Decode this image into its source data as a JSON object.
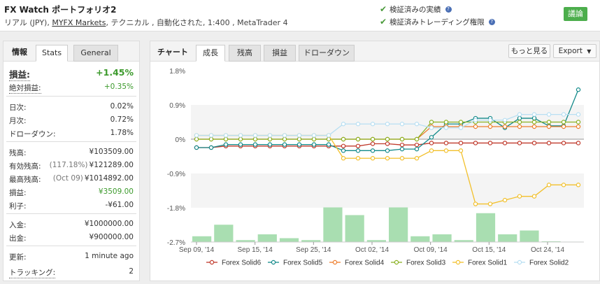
{
  "header": {
    "title": "FX Watch ポートフォリオ2",
    "subtitle_prefix": "リアル (JPY), ",
    "subtitle_link": "MYFX Markets",
    "subtitle_suffix": ", テクニカル , 自動化された, 1:400 , MetaTrader 4",
    "checks": [
      "検証済みの実績",
      "検証済みトレーディング権限"
    ],
    "discuss_button": "議論"
  },
  "left_panel": {
    "header_label": "情報",
    "tabs": [
      "Stats",
      "General"
    ],
    "gain": {
      "label": "損益:",
      "value": "+1.45%"
    },
    "abs_gain": {
      "label": "絶対損益:",
      "value": "+0.35%"
    },
    "group1": [
      {
        "label": "日次:",
        "value": "0.02%"
      },
      {
        "label": "月次:",
        "value": "0.72%"
      },
      {
        "label": "ドローダウン:",
        "value": "1.78%"
      }
    ],
    "group2": [
      {
        "label": "残高:",
        "note": "",
        "value": "¥103509.00"
      },
      {
        "label": "有効残高:",
        "note": "(117.18%)",
        "value": "¥121289.00"
      },
      {
        "label": "最高残高:",
        "note": "(Oct 09)",
        "value": "¥1014892.00"
      },
      {
        "label": "損益:",
        "note": "",
        "value": "¥3509.00"
      },
      {
        "label": "利子:",
        "note": "",
        "value": "-¥61.00"
      }
    ],
    "group3": [
      {
        "label": "入金:",
        "value": "¥1000000.00"
      },
      {
        "label": "出金:",
        "value": "¥900000.00"
      }
    ],
    "updated": {
      "label": "更新:",
      "value": "1 minute ago"
    },
    "tracking": {
      "label": "トラッキング:",
      "value": "2"
    }
  },
  "right_panel": {
    "header_label": "チャート",
    "tabs": [
      "成長",
      "残高",
      "損益",
      "ドローダウン"
    ],
    "more_button": "もっと見る",
    "export_button": "Export"
  },
  "chart_data": {
    "type": "line",
    "ylim": [
      -2.7,
      1.8
    ],
    "y_ticks": [
      "1.8%",
      "0.9%",
      "0%",
      "-0.9%",
      "-1.8%",
      "-2.7%"
    ],
    "x_tick_labels": [
      "Sep 09, '14",
      "Sep 15, '14",
      "Sep 25, '14",
      "Oct 02, '14",
      "Oct 09, '14",
      "Oct 15, '14",
      "Oct 24, '14"
    ],
    "x": [
      "Sep 09",
      "Sep 10",
      "Sep 11",
      "Sep 12",
      "Sep 15",
      "Sep 16",
      "Sep 17",
      "Sep 18",
      "Sep 19",
      "Sep 22",
      "Sep 23",
      "Sep 24",
      "Sep 25",
      "Sep 26",
      "Sep 29",
      "Sep 30",
      "Oct 01",
      "Oct 02",
      "Oct 03",
      "Oct 06",
      "Oct 07",
      "Oct 08",
      "Oct 09",
      "Oct 10",
      "Oct 13",
      "Oct 14",
      "Oct 15"
    ],
    "series": [
      {
        "name": "Forex Solid6",
        "color": "#c0392b",
        "values": [
          -0.22,
          -0.22,
          -0.18,
          -0.18,
          -0.18,
          -0.18,
          -0.18,
          -0.18,
          -0.18,
          -0.18,
          -0.18,
          -0.18,
          -0.12,
          -0.12,
          -0.15,
          -0.15,
          -0.1,
          -0.1,
          -0.1,
          -0.1,
          -0.1,
          -0.1,
          -0.1,
          -0.1,
          -0.1,
          -0.1,
          -0.1
        ]
      },
      {
        "name": "Forex Solid5",
        "color": "#138a8a",
        "values": [
          -0.22,
          -0.22,
          -0.14,
          -0.14,
          -0.14,
          -0.14,
          -0.14,
          -0.14,
          -0.14,
          -0.14,
          -0.3,
          -0.3,
          -0.3,
          -0.3,
          -0.26,
          -0.26,
          0.05,
          0.4,
          0.4,
          0.55,
          0.55,
          0.3,
          0.55,
          0.55,
          0.35,
          0.35,
          1.3
        ]
      },
      {
        "name": "Forex Solid4",
        "color": "#ee7d2c",
        "values": [
          0.0,
          0.0,
          0.0,
          0.0,
          0.0,
          0.0,
          0.0,
          0.0,
          0.0,
          0.0,
          0.0,
          0.0,
          0.0,
          0.0,
          0.0,
          0.0,
          0.33,
          0.33,
          0.33,
          0.33,
          0.33,
          0.33,
          0.33,
          0.33,
          0.33,
          0.33,
          0.33
        ]
      },
      {
        "name": "Forex Solid3",
        "color": "#8ab122",
        "values": [
          0.0,
          0.0,
          0.0,
          0.0,
          0.0,
          0.0,
          0.0,
          0.0,
          0.0,
          0.0,
          0.0,
          0.0,
          0.0,
          0.0,
          0.0,
          0.0,
          0.45,
          0.45,
          0.45,
          0.45,
          0.45,
          0.45,
          0.45,
          0.45,
          0.45,
          0.45,
          0.45
        ]
      },
      {
        "name": "Forex Solid1",
        "color": "#f2c02c",
        "values": [
          0.1,
          0.1,
          0.1,
          0.1,
          0.1,
          0.1,
          0.1,
          0.1,
          0.1,
          0.1,
          -0.5,
          -0.5,
          -0.5,
          -0.5,
          -0.5,
          -0.5,
          -0.3,
          -0.3,
          -0.3,
          -1.7,
          -1.7,
          -1.6,
          -1.5,
          -1.5,
          -1.2,
          -1.2,
          -1.2
        ]
      },
      {
        "name": "Forex Solid2",
        "color": "#b8dff2",
        "values": [
          0.1,
          0.1,
          0.1,
          0.1,
          0.1,
          0.1,
          0.1,
          0.1,
          0.1,
          0.1,
          0.4,
          0.4,
          0.4,
          0.4,
          0.4,
          0.4,
          0.3,
          0.3,
          0.3,
          0.5,
          0.5,
          0.5,
          0.65,
          0.65,
          0.65,
          0.65,
          0.65
        ]
      }
    ],
    "bars": {
      "color": "#a9deb1",
      "values": [
        0.15,
        0.45,
        0.05,
        0.2,
        0.1,
        0.05,
        0.9,
        0.7,
        0.05,
        0.9,
        0.15,
        0.2,
        0.05,
        0.75,
        0.2,
        0.3,
        0.02,
        0.01
      ]
    }
  }
}
